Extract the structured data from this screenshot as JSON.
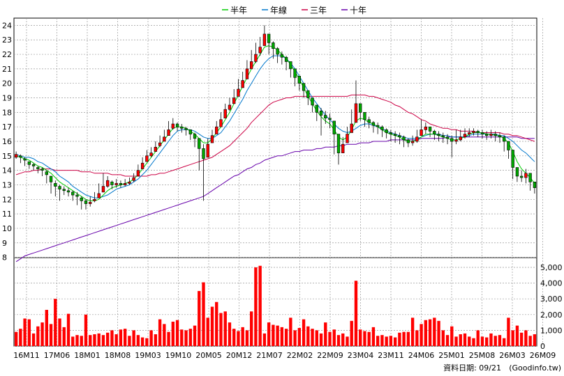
{
  "chart_data": {
    "type": "candlestick+line+bar",
    "legend": [
      {
        "label": "半年",
        "color": "#00cc00"
      },
      {
        "label": "年線",
        "color": "#0077cc"
      },
      {
        "label": "三年",
        "color": "#cc0044"
      },
      {
        "label": "十年",
        "color": "#6600aa"
      }
    ],
    "price_axis": {
      "min": 7.5,
      "max": 24.5,
      "ticks": [
        8,
        9,
        10,
        11,
        12,
        13,
        14,
        15,
        16,
        17,
        18,
        19,
        20,
        21,
        22,
        23,
        24
      ]
    },
    "volume_axis": {
      "min": 0,
      "max": 5000,
      "ticks": [
        0,
        1000,
        2000,
        3000,
        4000,
        5000
      ],
      "tick_labels": [
        "0",
        "1,000",
        "2,000",
        "3,000",
        "4,000",
        "5,000"
      ]
    },
    "x_labels": [
      {
        "label": "16M11",
        "pos": 0
      },
      {
        "label": "17M06",
        "pos": 0.069
      },
      {
        "label": "18M01",
        "pos": 0.138
      },
      {
        "label": "18M08",
        "pos": 0.207
      },
      {
        "label": "19M03",
        "pos": 0.276
      },
      {
        "label": "19M10",
        "pos": 0.345
      },
      {
        "label": "20M05",
        "pos": 0.414
      },
      {
        "label": "20M12",
        "pos": 0.483
      },
      {
        "label": "21M07",
        "pos": 0.552
      },
      {
        "label": "22M02",
        "pos": 0.621
      },
      {
        "label": "22M09",
        "pos": 0.69
      },
      {
        "label": "23M04",
        "pos": 0.759
      },
      {
        "label": "23M11",
        "pos": 0.828
      },
      {
        "label": "24M06",
        "pos": 0.897
      },
      {
        "label": "25M01",
        "pos": 0.966
      },
      {
        "label": "25M08",
        "pos": 1.035
      },
      {
        "label": "26M03",
        "pos": 1.104
      },
      {
        "label": "26M09",
        "pos": 1.173
      }
    ],
    "price_close": [
      15.1,
      14.9,
      14.7,
      14.4,
      14.3,
      14.1,
      14.0,
      13.7,
      13.2,
      12.9,
      12.7,
      12.6,
      12.5,
      12.3,
      12.2,
      11.9,
      11.7,
      11.8,
      12.0,
      12.4,
      12.9,
      13.3,
      13.0,
      13.1,
      13.0,
      13.1,
      13.2,
      13.5,
      14.0,
      14.5,
      15.0,
      15.2,
      15.6,
      15.9,
      16.3,
      16.8,
      17.2,
      17.0,
      16.9,
      16.8,
      16.5,
      16.2,
      15.5,
      14.8,
      15.8,
      16.4,
      17.0,
      17.5,
      18.2,
      18.5,
      19.0,
      19.6,
      20.2,
      21.0,
      21.5,
      22.0,
      22.5,
      23.4,
      22.8,
      22.4,
      22.0,
      21.8,
      21.5,
      21.0,
      20.4,
      20.0,
      19.5,
      19.0,
      18.5,
      18.0,
      17.8,
      17.6,
      17.5,
      16.5,
      15.2,
      15.8,
      16.5,
      17.2,
      18.6,
      18.0,
      17.5,
      17.3,
      17.1,
      17.0,
      16.8,
      16.6,
      16.5,
      16.4,
      16.3,
      16.1,
      15.9,
      16.0,
      16.3,
      16.8,
      17.0,
      16.7,
      16.5,
      16.4,
      16.3,
      16.2,
      16.0,
      16.1,
      16.3,
      16.5,
      16.6,
      16.7,
      16.6,
      16.5,
      16.4,
      16.5,
      16.4,
      16.3,
      16.0,
      15.4,
      14.2,
      13.6,
      13.5,
      13.8,
      13.2,
      12.8
    ],
    "price_high": [
      15.3,
      15.1,
      14.9,
      14.6,
      14.5,
      14.3,
      14.2,
      14.0,
      13.6,
      13.3,
      13.0,
      12.9,
      12.8,
      12.6,
      12.5,
      12.2,
      12.0,
      12.2,
      12.5,
      13.1,
      13.8,
      13.6,
      13.3,
      13.4,
      13.3,
      13.4,
      13.5,
      13.8,
      14.4,
      14.9,
      15.4,
      15.6,
      16.0,
      16.4,
      16.8,
      17.4,
      17.6,
      17.3,
      17.2,
      17.0,
      16.8,
      16.6,
      16.0,
      15.8,
      16.2,
      16.8,
      17.4,
      18.0,
      18.6,
      19.0,
      19.6,
      20.3,
      20.8,
      21.6,
      22.3,
      22.8,
      23.2,
      24.0,
      23.3,
      22.9,
      22.5,
      22.2,
      21.9,
      21.5,
      20.8,
      20.5,
      19.9,
      19.4,
      18.9,
      18.5,
      18.3,
      18.1,
      17.9,
      17.2,
      16.2,
      16.3,
      17.0,
      18.2,
      20.2,
      18.6,
      18.0,
      17.7,
      17.4,
      17.3,
      17.1,
      16.9,
      16.8,
      16.7,
      16.6,
      16.4,
      16.2,
      16.4,
      16.8,
      17.5,
      17.3,
      17.0,
      16.8,
      16.7,
      16.6,
      16.5,
      16.4,
      16.8,
      16.8,
      16.9,
      16.9,
      16.9,
      16.8,
      16.8,
      16.7,
      16.8,
      16.7,
      16.6,
      16.4,
      16.0,
      15.0,
      14.1,
      14.0,
      14.1,
      13.5,
      13.0
    ],
    "price_low": [
      14.8,
      14.5,
      14.3,
      14.1,
      14.0,
      13.8,
      13.6,
      13.1,
      12.4,
      12.2,
      11.9,
      12.3,
      12.2,
      11.9,
      11.6,
      11.3,
      11.3,
      11.5,
      11.8,
      12.1,
      12.6,
      12.8,
      12.7,
      12.8,
      12.8,
      12.9,
      13.0,
      13.2,
      13.7,
      14.2,
      14.7,
      14.9,
      15.3,
      15.6,
      16.0,
      16.4,
      16.8,
      16.7,
      16.6,
      16.4,
      16.1,
      15.6,
      14.0,
      11.9,
      15.2,
      16.0,
      16.6,
      17.1,
      17.7,
      18.1,
      18.6,
      19.1,
      19.7,
      20.5,
      21.0,
      21.4,
      21.9,
      22.6,
      22.0,
      21.7,
      21.4,
      21.3,
      20.9,
      20.4,
      19.8,
      19.5,
      19.0,
      18.5,
      18.0,
      17.4,
      16.4,
      17.2,
      16.9,
      15.1,
      14.4,
      15.2,
      16.0,
      16.7,
      17.6,
      17.4,
      17.0,
      16.9,
      16.6,
      16.5,
      16.3,
      16.2,
      16.0,
      15.9,
      15.8,
      15.6,
      15.6,
      15.7,
      15.9,
      16.4,
      16.5,
      16.3,
      16.1,
      16.0,
      15.9,
      15.8,
      14.9,
      15.8,
      16.0,
      16.2,
      16.3,
      16.4,
      16.3,
      16.2,
      16.1,
      16.2,
      16.0,
      15.9,
      15.3,
      14.8,
      13.4,
      13.2,
      13.2,
      13.1,
      12.6,
      12.4
    ],
    "price_open": [
      14.9,
      15.0,
      14.8,
      14.6,
      14.4,
      14.2,
      14.1,
      13.9,
      13.6,
      13.1,
      12.9,
      12.7,
      12.6,
      12.5,
      12.3,
      12.1,
      11.9,
      11.7,
      11.9,
      12.1,
      12.5,
      12.9,
      13.2,
      13.0,
      13.1,
      13.0,
      13.1,
      13.3,
      13.6,
      14.1,
      14.6,
      15.0,
      15.3,
      15.7,
      16.0,
      16.4,
      16.9,
      17.2,
      17.0,
      16.9,
      16.8,
      16.5,
      16.2,
      15.5,
      14.9,
      15.9,
      16.5,
      17.0,
      17.6,
      18.2,
      18.6,
      19.1,
      19.7,
      20.3,
      21.0,
      21.5,
      22.1,
      22.6,
      23.4,
      22.8,
      22.4,
      22.0,
      21.8,
      21.5,
      21.0,
      20.5,
      20.0,
      19.5,
      19.0,
      18.5,
      18.1,
      17.8,
      17.6,
      17.4,
      16.5,
      15.2,
      15.9,
      16.6,
      17.3,
      18.6,
      18.0,
      17.5,
      17.3,
      17.1,
      17.0,
      16.8,
      16.6,
      16.5,
      16.4,
      16.3,
      16.1,
      15.9,
      16.0,
      16.4,
      16.8,
      17.0,
      16.7,
      16.5,
      16.4,
      16.3,
      16.2,
      16.0,
      16.1,
      16.3,
      16.5,
      16.6,
      16.7,
      16.6,
      16.5,
      16.4,
      16.5,
      16.4,
      16.3,
      16.0,
      15.4,
      14.2,
      13.6,
      13.5,
      13.8,
      13.2
    ],
    "ma_half": [
      15.0,
      14.9,
      14.8,
      14.7,
      14.5,
      14.3,
      14.2,
      14.0,
      13.8,
      13.5,
      13.2,
      13.0,
      12.8,
      12.6,
      12.4,
      12.2,
      12.0,
      11.9,
      11.9,
      12.0,
      12.3,
      12.6,
      12.8,
      12.9,
      13.0,
      13.1,
      13.2,
      13.4,
      13.7,
      14.1,
      14.5,
      14.9,
      15.3,
      15.7,
      16.1,
      16.5,
      16.9,
      17.0,
      17.0,
      16.9,
      16.7,
      16.5,
      16.2,
      15.9,
      15.9,
      16.2,
      16.6,
      17.0,
      17.5,
      18.0,
      18.6,
      19.2,
      19.8,
      20.4,
      21.0,
      21.5,
      22.0,
      22.5,
      22.6,
      22.5,
      22.3,
      22.0,
      21.7,
      21.3,
      20.8,
      20.3,
      19.7,
      19.1,
      18.6,
      18.1,
      17.7,
      17.4,
      17.2,
      16.8,
      16.3,
      16.1,
      16.3,
      16.8,
      17.4,
      17.6,
      17.5,
      17.3,
      17.2,
      17.0,
      16.8,
      16.6,
      16.5,
      16.4,
      16.3,
      16.1,
      16.0,
      16.0,
      16.1,
      16.3,
      16.5,
      16.5,
      16.5,
      16.4,
      16.3,
      16.2,
      16.1,
      16.1,
      16.2,
      16.3,
      16.5,
      16.6,
      16.6,
      16.6,
      16.5,
      16.5,
      16.4,
      16.4,
      16.2,
      15.9,
      15.3,
      14.6,
      14.1,
      13.8,
      13.5,
      13.1
    ],
    "ma_year": [
      15.1,
      15.0,
      14.9,
      14.9,
      14.8,
      14.6,
      14.5,
      14.3,
      14.1,
      13.9,
      13.6,
      13.4,
      13.2,
      12.9,
      12.7,
      12.5,
      12.3,
      12.2,
      12.1,
      12.1,
      12.2,
      12.3,
      12.5,
      12.7,
      12.8,
      12.9,
      13.0,
      13.2,
      13.4,
      13.7,
      14.0,
      14.4,
      14.8,
      15.2,
      15.6,
      16.0,
      16.4,
      16.7,
      16.8,
      16.8,
      16.8,
      16.7,
      16.5,
      16.3,
      16.2,
      16.2,
      16.4,
      16.6,
      17.0,
      17.4,
      17.9,
      18.4,
      18.9,
      19.5,
      20.0,
      20.5,
      21.0,
      21.4,
      21.7,
      21.9,
      21.9,
      21.9,
      21.7,
      21.4,
      21.0,
      20.5,
      20.0,
      19.5,
      19.0,
      18.6,
      18.2,
      17.8,
      17.5,
      17.2,
      16.9,
      16.7,
      16.6,
      16.7,
      16.9,
      17.1,
      17.2,
      17.2,
      17.1,
      17.0,
      16.9,
      16.7,
      16.6,
      16.5,
      16.4,
      16.3,
      16.2,
      16.2,
      16.2,
      16.3,
      16.4,
      16.5,
      16.5,
      16.5,
      16.4,
      16.4,
      16.3,
      16.3,
      16.3,
      16.3,
      16.4,
      16.5,
      16.5,
      16.5,
      16.5,
      16.5,
      16.5,
      16.4,
      16.4,
      16.2,
      16.0,
      15.7,
      15.4,
      15.2,
      14.9,
      14.6
    ],
    "ma_3y": [
      13.7,
      13.8,
      13.9,
      13.9,
      14.0,
      14.0,
      14.1,
      14.1,
      14.1,
      14.0,
      14.0,
      14.0,
      14.0,
      14.0,
      14.0,
      13.9,
      13.9,
      13.9,
      13.8,
      13.8,
      13.8,
      13.8,
      13.7,
      13.7,
      13.7,
      13.6,
      13.6,
      13.6,
      13.6,
      13.6,
      13.6,
      13.7,
      13.7,
      13.8,
      13.8,
      13.9,
      14.0,
      14.1,
      14.2,
      14.3,
      14.4,
      14.5,
      14.6,
      14.7,
      14.8,
      14.9,
      15.1,
      15.3,
      15.5,
      15.7,
      16.0,
      16.3,
      16.6,
      16.9,
      17.3,
      17.6,
      17.9,
      18.2,
      18.5,
      18.7,
      18.8,
      18.9,
      19.0,
      19.0,
      19.1,
      19.1,
      19.1,
      19.1,
      19.1,
      19.1,
      19.1,
      19.1,
      19.1,
      19.1,
      19.1,
      19.1,
      19.1,
      19.2,
      19.2,
      19.2,
      19.2,
      19.1,
      19.1,
      19.0,
      18.9,
      18.8,
      18.7,
      18.5,
      18.4,
      18.2,
      18.0,
      17.9,
      17.7,
      17.5,
      17.4,
      17.2,
      17.1,
      17.0,
      16.9,
      16.9,
      16.8,
      16.8,
      16.7,
      16.7,
      16.7,
      16.7,
      16.6,
      16.6,
      16.6,
      16.6,
      16.6,
      16.6,
      16.5,
      16.5,
      16.4,
      16.4,
      16.3,
      16.2,
      16.1,
      16.0
    ],
    "ma_10y": [
      7.7,
      7.9,
      8.1,
      8.2,
      8.3,
      8.4,
      8.5,
      8.6,
      8.7,
      8.8,
      8.9,
      9.0,
      9.1,
      9.2,
      9.3,
      9.4,
      9.5,
      9.6,
      9.7,
      9.8,
      9.9,
      10.0,
      10.1,
      10.2,
      10.3,
      10.4,
      10.5,
      10.6,
      10.7,
      10.8,
      10.9,
      11.0,
      11.1,
      11.2,
      11.3,
      11.4,
      11.5,
      11.6,
      11.7,
      11.8,
      11.9,
      12.0,
      12.1,
      12.2,
      12.4,
      12.6,
      12.8,
      13.0,
      13.2,
      13.4,
      13.6,
      13.7,
      13.9,
      14.1,
      14.2,
      14.4,
      14.5,
      14.7,
      14.8,
      14.9,
      15.0,
      15.0,
      15.1,
      15.2,
      15.3,
      15.3,
      15.4,
      15.4,
      15.4,
      15.5,
      15.5,
      15.6,
      15.6,
      15.6,
      15.7,
      15.7,
      15.8,
      15.8,
      15.8,
      15.9,
      15.9,
      15.9,
      16.0,
      16.0,
      16.0,
      16.0,
      16.1,
      16.1,
      16.1,
      16.1,
      16.1,
      16.1,
      16.1,
      16.2,
      16.2,
      16.2,
      16.2,
      16.2,
      16.2,
      16.3,
      16.3,
      16.3,
      16.3,
      16.3,
      16.3,
      16.3,
      16.3,
      16.3,
      16.3,
      16.3,
      16.3,
      16.3,
      16.3,
      16.3,
      16.3,
      16.3,
      16.2,
      16.2,
      16.2,
      16.2
    ],
    "volume": [
      900,
      1100,
      1750,
      1700,
      800,
      1250,
      1500,
      2300,
      1400,
      3000,
      1750,
      1200,
      2050,
      600,
      700,
      650,
      2000,
      700,
      750,
      800,
      700,
      850,
      1000,
      750,
      1050,
      1100,
      650,
      1000,
      700,
      550,
      500,
      1000,
      750,
      1700,
      1400,
      900,
      1550,
      1650,
      1050,
      1000,
      1100,
      1300,
      3500,
      4050,
      1800,
      2500,
      2800,
      2100,
      2200,
      1500,
      1100,
      950,
      1200,
      1000,
      2200,
      5000,
      5100,
      800,
      1500,
      1350,
      1300,
      1200,
      1100,
      1800,
      1000,
      1150,
      1700,
      1250,
      1100,
      1000,
      800,
      1500,
      900,
      1050,
      700,
      800,
      600,
      1600,
      4150,
      1050,
      950,
      900,
      1200,
      650,
      700,
      600,
      650,
      550,
      850,
      900,
      900,
      1800,
      1000,
      1400,
      1650,
      1700,
      1800,
      1600,
      1000,
      700,
      1250,
      600,
      750,
      800,
      600,
      500,
      1000,
      600,
      550,
      800,
      650,
      700,
      500,
      1800,
      1000,
      1300,
      850,
      1000,
      650,
      750
    ]
  },
  "credit": {
    "date_label": "資料日期: 09/21",
    "source": "(Goodinfo.tw)"
  }
}
